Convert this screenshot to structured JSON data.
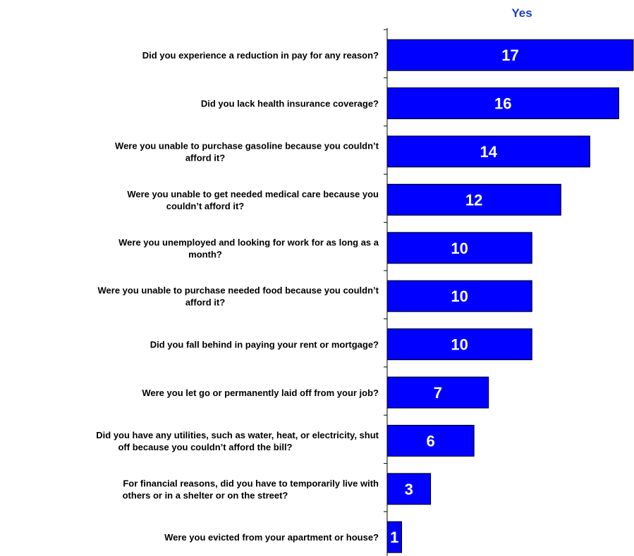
{
  "chart_data": {
    "type": "bar",
    "orientation": "horizontal",
    "series": [
      {
        "name": "Yes",
        "values": [
          17,
          16,
          14,
          12,
          10,
          10,
          10,
          7,
          6,
          3,
          1
        ]
      }
    ],
    "categories": [
      [
        "Did you experience a reduction in pay for any reason?"
      ],
      [
        "Did you lack health insurance coverage?"
      ],
      [
        "Were you unable to purchase gasoline because you couldn’t",
        "afford it?"
      ],
      [
        "Were you unable to get needed medical care because you",
        "couldn’t afford it?"
      ],
      [
        "Were you unemployed and looking for work for as long as a",
        "month?"
      ],
      [
        "Were you unable to purchase needed food because you couldn’t",
        "afford it?"
      ],
      [
        "Did you fall behind in paying your rent or mortgage?"
      ],
      [
        "Were you let go or permanently laid off from your job?"
      ],
      [
        "Did you have any utilities, such as water, heat, or electricity, shut",
        "off because you couldn’t afford the bill?"
      ],
      [
        "For financial reasons, did you have to temporarily live with",
        "others or in a shelter or on the street?"
      ],
      [
        "Were you evicted from your apartment or house?"
      ]
    ],
    "xlim": [
      0,
      17
    ],
    "data_labels": "inside bar",
    "grid": false
  },
  "colors": {
    "bar_fill": "#0000ff",
    "bar_stroke": "#000000",
    "series_label": "#1f3fbf",
    "value_text": "#ffffff",
    "category_text": "#000000"
  }
}
